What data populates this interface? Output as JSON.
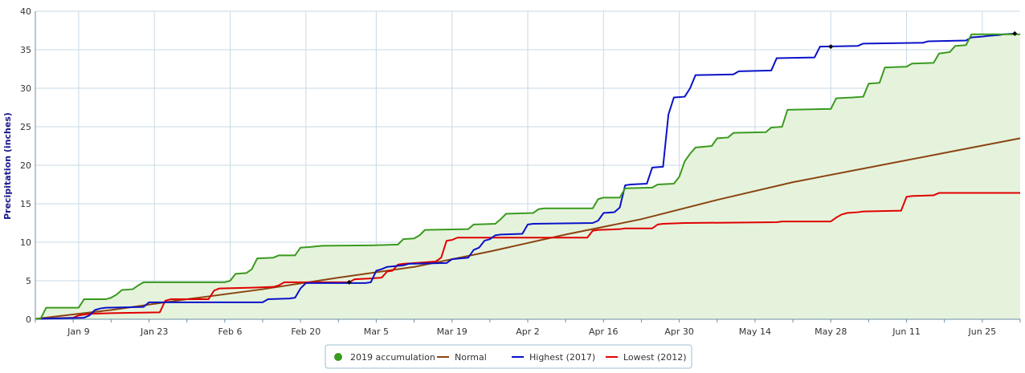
{
  "chart_data": {
    "type": "line",
    "title": "",
    "xlabel": "",
    "ylabel": "Precipitation (inches)",
    "x_ticks": [
      "Jan 9",
      "Jan 23",
      "Feb 6",
      "Feb 20",
      "Mar 5",
      "Mar 19",
      "Apr 2",
      "Apr 16",
      "Apr 30",
      "May 14",
      "May 28",
      "Jun 11",
      "Jun 25"
    ],
    "y_ticks": [
      "0",
      "5",
      "10",
      "15",
      "20",
      "25",
      "30",
      "35",
      "40"
    ],
    "xlim": [
      "Jan 1",
      "Jul 2"
    ],
    "ylim": [
      0,
      40
    ],
    "grid": true,
    "legend_position": "bottom-center",
    "series": [
      {
        "name": "2019 accumulation",
        "color": "#3a9a1f",
        "fill": "#e6f3dc",
        "legend_marker": "circle",
        "points": [
          [
            "Jan 1",
            0.05
          ],
          [
            "Jan 2",
            0.1
          ],
          [
            "Jan 3",
            1.5
          ],
          [
            "Jan 9",
            1.5
          ],
          [
            "Jan 10",
            2.6
          ],
          [
            "Jan 14",
            2.6
          ],
          [
            "Jan 15",
            2.8
          ],
          [
            "Jan 16",
            3.2
          ],
          [
            "Jan 17",
            3.8
          ],
          [
            "Jan 19",
            3.9
          ],
          [
            "Jan 20",
            4.4
          ],
          [
            "Jan 21",
            4.8
          ],
          [
            "Jan 31",
            4.8
          ],
          [
            "Feb 5",
            4.8
          ],
          [
            "Feb 6",
            5.0
          ],
          [
            "Feb 7",
            5.9
          ],
          [
            "Feb 9",
            6.0
          ],
          [
            "Feb 10",
            6.5
          ],
          [
            "Feb 11",
            7.9
          ],
          [
            "Feb 14",
            8.0
          ],
          [
            "Feb 15",
            8.3
          ],
          [
            "Feb 18",
            8.3
          ],
          [
            "Feb 19",
            9.3
          ],
          [
            "Feb 21",
            9.4
          ],
          [
            "Feb 23",
            9.55
          ],
          [
            "Mar 4",
            9.6
          ],
          [
            "Mar 9",
            9.7
          ],
          [
            "Mar 10",
            10.4
          ],
          [
            "Mar 12",
            10.5
          ],
          [
            "Mar 13",
            10.9
          ],
          [
            "Mar 14",
            11.6
          ],
          [
            "Mar 22",
            11.7
          ],
          [
            "Mar 23",
            12.3
          ],
          [
            "Mar 27",
            12.4
          ],
          [
            "Mar 28",
            13.0
          ],
          [
            "Mar 29",
            13.7
          ],
          [
            "Apr 3",
            13.8
          ],
          [
            "Apr 4",
            14.3
          ],
          [
            "Apr 5",
            14.4
          ],
          [
            "Apr 14",
            14.4
          ],
          [
            "Apr 15",
            15.6
          ],
          [
            "Apr 16",
            15.8
          ],
          [
            "Apr 19",
            15.8
          ],
          [
            "Apr 20",
            17.0
          ],
          [
            "Apr 25",
            17.1
          ],
          [
            "Apr 26",
            17.5
          ],
          [
            "Apr 29",
            17.6
          ],
          [
            "Apr 30",
            18.5
          ],
          [
            "May 1",
            20.5
          ],
          [
            "May 2",
            21.5
          ],
          [
            "May 3",
            22.3
          ],
          [
            "May 6",
            22.5
          ],
          [
            "May 7",
            23.5
          ],
          [
            "May 9",
            23.6
          ],
          [
            "May 10",
            24.2
          ],
          [
            "May 16",
            24.3
          ],
          [
            "May 17",
            24.9
          ],
          [
            "May 19",
            25.0
          ],
          [
            "May 20",
            27.2
          ],
          [
            "May 27",
            27.3
          ],
          [
            "May 28",
            27.3
          ],
          [
            "May 29",
            28.7
          ],
          [
            "Jun 1",
            28.8
          ],
          [
            "Jun 3",
            28.9
          ],
          [
            "Jun 4",
            30.6
          ],
          [
            "Jun 6",
            30.7
          ],
          [
            "Jun 7",
            32.7
          ],
          [
            "Jun 11",
            32.8
          ],
          [
            "Jun 12",
            33.2
          ],
          [
            "Jun 16",
            33.3
          ],
          [
            "Jun 17",
            34.5
          ],
          [
            "Jun 19",
            34.7
          ],
          [
            "Jun 20",
            35.5
          ],
          [
            "Jun 22",
            35.6
          ],
          [
            "Jun 23",
            37.0
          ],
          [
            "Jul 2",
            37.0
          ]
        ]
      },
      {
        "name": "Normal",
        "color": "#8b4513",
        "points": [
          [
            "Jan 1",
            0.05
          ],
          [
            "Jan 15",
            1.2
          ],
          [
            "Jan 29",
            2.6
          ],
          [
            "Feb 12",
            3.9
          ],
          [
            "Feb 26",
            5.4
          ],
          [
            "Mar 12",
            6.8
          ],
          [
            "Mar 26",
            8.8
          ],
          [
            "Apr 9",
            11.0
          ],
          [
            "Apr 23",
            13.0
          ],
          [
            "May 7",
            15.5
          ],
          [
            "May 21",
            17.8
          ],
          [
            "Jun 4",
            19.7
          ],
          [
            "Jun 18",
            21.6
          ],
          [
            "Jul 2",
            23.5
          ]
        ]
      },
      {
        "name": "Highest (2017)",
        "color": "#0a12c8",
        "points": [
          [
            "Jan 1",
            0.05
          ],
          [
            "Jan 10",
            0.2
          ],
          [
            "Jan 11",
            0.5
          ],
          [
            "Jan 12",
            1.2
          ],
          [
            "Jan 13",
            1.4
          ],
          [
            "Jan 14",
            1.5
          ],
          [
            "Jan 21",
            1.6
          ],
          [
            "Jan 22",
            2.2
          ],
          [
            "Jan 24",
            2.2
          ],
          [
            "Feb 12",
            2.2
          ],
          [
            "Feb 13",
            2.6
          ],
          [
            "Feb 17",
            2.7
          ],
          [
            "Feb 18",
            2.8
          ],
          [
            "Feb 19",
            4.0
          ],
          [
            "Feb 20",
            4.7
          ],
          [
            "Mar 3",
            4.7
          ],
          [
            "Mar 4",
            4.8
          ],
          [
            "Mar 5",
            6.3
          ],
          [
            "Mar 6",
            6.5
          ],
          [
            "Mar 7",
            6.8
          ],
          [
            "Mar 10",
            7.0
          ],
          [
            "Mar 11",
            7.2
          ],
          [
            "Mar 18",
            7.3
          ],
          [
            "Mar 19",
            7.8
          ],
          [
            "Mar 22",
            8.0
          ],
          [
            "Mar 23",
            9.0
          ],
          [
            "Mar 24",
            9.3
          ],
          [
            "Mar 25",
            10.2
          ],
          [
            "Mar 26",
            10.4
          ],
          [
            "Mar 27",
            10.9
          ],
          [
            "Mar 28",
            11.0
          ],
          [
            "Apr 1",
            11.1
          ],
          [
            "Apr 2",
            12.3
          ],
          [
            "Apr 3",
            12.4
          ],
          [
            "Apr 14",
            12.5
          ],
          [
            "Apr 15",
            12.8
          ],
          [
            "Apr 16",
            13.8
          ],
          [
            "Apr 18",
            13.9
          ],
          [
            "Apr 19",
            14.5
          ],
          [
            "Apr 20",
            17.4
          ],
          [
            "Apr 21",
            17.5
          ],
          [
            "Apr 24",
            17.6
          ],
          [
            "Apr 25",
            19.7
          ],
          [
            "Apr 27",
            19.8
          ],
          [
            "Apr 28",
            26.6
          ],
          [
            "Apr 29",
            28.8
          ],
          [
            "May 1",
            28.9
          ],
          [
            "May 2",
            30.0
          ],
          [
            "May 3",
            31.7
          ],
          [
            "May 10",
            31.8
          ],
          [
            "May 11",
            32.2
          ],
          [
            "May 17",
            32.3
          ],
          [
            "May 18",
            33.9
          ],
          [
            "May 25",
            34.0
          ],
          [
            "May 26",
            35.4
          ],
          [
            "Jun 2",
            35.5
          ],
          [
            "Jun 3",
            35.8
          ],
          [
            "Jun 14",
            35.9
          ],
          [
            "Jun 15",
            36.1
          ],
          [
            "Jun 22",
            36.2
          ],
          [
            "Jun 23",
            36.6
          ],
          [
            "Jun 25",
            36.7
          ],
          [
            "Jun 26",
            36.8
          ],
          [
            "Jun 28",
            36.9
          ],
          [
            "Jun 29",
            37.0
          ],
          [
            "Jul 1",
            37.1
          ]
        ],
        "markers": [
          [
            "May 28",
            35.4
          ],
          [
            "Jul 1",
            37.1
          ]
        ]
      },
      {
        "name": "Lowest (2012)",
        "color": "#e00000",
        "points": [
          [
            "Jan 1",
            0.05
          ],
          [
            "Jan 8",
            0.2
          ],
          [
            "Jan 9",
            0.5
          ],
          [
            "Jan 10",
            0.6
          ],
          [
            "Jan 11",
            0.7
          ],
          [
            "Jan 15",
            0.8
          ],
          [
            "Jan 24",
            0.9
          ],
          [
            "Jan 25",
            2.4
          ],
          [
            "Jan 26",
            2.6
          ],
          [
            "Feb 2",
            2.6
          ],
          [
            "Feb 3",
            3.7
          ],
          [
            "Feb 4",
            4.0
          ],
          [
            "Feb 10",
            4.1
          ],
          [
            "Feb 14",
            4.2
          ],
          [
            "Feb 15",
            4.4
          ],
          [
            "Feb 16",
            4.8
          ],
          [
            "Feb 28",
            4.8
          ],
          [
            "Mar 1",
            5.2
          ],
          [
            "Mar 4",
            5.3
          ],
          [
            "Mar 6",
            5.4
          ],
          [
            "Mar 7",
            6.2
          ],
          [
            "Mar 8",
            6.3
          ],
          [
            "Mar 9",
            7.1
          ],
          [
            "Mar 10",
            7.2
          ],
          [
            "Mar 16",
            7.5
          ],
          [
            "Mar 17",
            8.0
          ],
          [
            "Mar 18",
            10.2
          ],
          [
            "Mar 19",
            10.3
          ],
          [
            "Mar 20",
            10.6
          ],
          [
            "Apr 13",
            10.6
          ],
          [
            "Apr 14",
            11.5
          ],
          [
            "Apr 15",
            11.6
          ],
          [
            "Apr 19",
            11.7
          ],
          [
            "Apr 20",
            11.8
          ],
          [
            "Apr 25",
            11.8
          ],
          [
            "Apr 26",
            12.3
          ],
          [
            "Apr 27",
            12.4
          ],
          [
            "May 1",
            12.5
          ],
          [
            "May 18",
            12.6
          ],
          [
            "May 19",
            12.7
          ],
          [
            "May 28",
            12.7
          ],
          [
            "May 29",
            13.2
          ],
          [
            "May 30",
            13.6
          ],
          [
            "May 31",
            13.8
          ],
          [
            "Jun 2",
            13.9
          ],
          [
            "Jun 3",
            14.0
          ],
          [
            "Jun 10",
            14.1
          ],
          [
            "Jun 11",
            15.9
          ],
          [
            "Jun 12",
            16.0
          ],
          [
            "Jun 16",
            16.1
          ],
          [
            "Jun 17",
            16.4
          ],
          [
            "Jul 2",
            16.4
          ]
        ],
        "markers": [
          [
            "Feb 28",
            4.8
          ]
        ]
      }
    ]
  }
}
